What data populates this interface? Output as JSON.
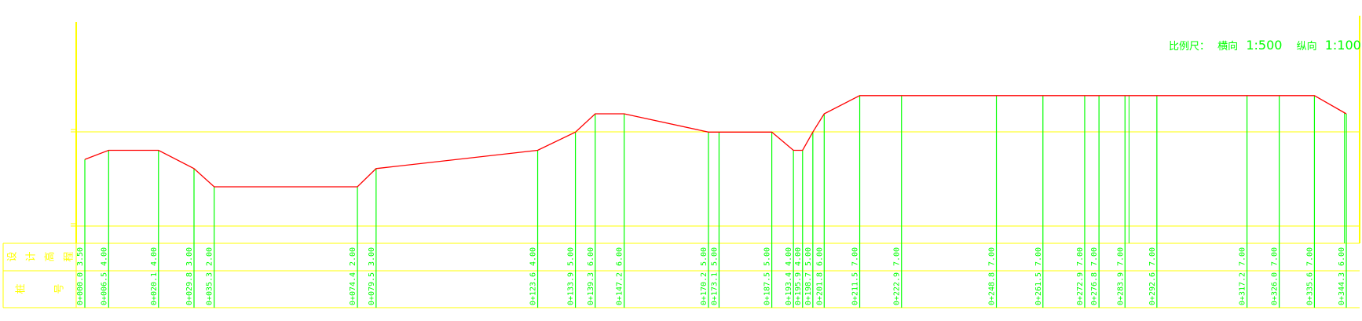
{
  "drawing": {
    "scale_label": "比例尺：",
    "horizontal_label": "横向",
    "horizontal_scale": "1:500",
    "vertical_label": "纵向",
    "vertical_scale": "1:100",
    "row_labels": {
      "elevation": [
        "设",
        "计",
        "高",
        "程"
      ],
      "station": [
        "桩",
        "号"
      ]
    },
    "colors": {
      "grid": "#ffff00",
      "profile_line": "#ff0000",
      "station_lines": "#00ff00",
      "text": "#00ff00",
      "row_labels": "#ffff00",
      "background": "#ffffff"
    }
  },
  "chart_data": {
    "type": "line",
    "title": "",
    "xlabel": "",
    "ylabel": "",
    "x_unit": "m",
    "ylim": [
      0,
      8
    ],
    "points": [
      {
        "station": "0+000.0",
        "x": 0.0,
        "elevation": "3.50",
        "y": 3.5
      },
      {
        "station": "0+006.5",
        "x": 6.5,
        "elevation": "4.00",
        "y": 4.0
      },
      {
        "station": "0+020.1",
        "x": 20.1,
        "elevation": "4.00",
        "y": 4.0
      },
      {
        "station": "0+029.8",
        "x": 29.8,
        "elevation": "3.00",
        "y": 3.0
      },
      {
        "station": "0+035.3",
        "x": 35.3,
        "elevation": "2.00",
        "y": 2.0
      },
      {
        "station": "0+074.4",
        "x": 74.4,
        "elevation": "2.00",
        "y": 2.0
      },
      {
        "station": "0+079.5",
        "x": 79.5,
        "elevation": "3.00",
        "y": 3.0
      },
      {
        "station": "0+123.6",
        "x": 123.6,
        "elevation": "4.00",
        "y": 4.0
      },
      {
        "station": "0+133.9",
        "x": 133.9,
        "elevation": "5.00",
        "y": 5.0
      },
      {
        "station": "0+139.3",
        "x": 139.3,
        "elevation": "6.00",
        "y": 6.0
      },
      {
        "station": "0+147.2",
        "x": 147.2,
        "elevation": "6.00",
        "y": 6.0
      },
      {
        "station": "0+170.2",
        "x": 170.2,
        "elevation": "5.00",
        "y": 5.0
      },
      {
        "station": "0+173.1",
        "x": 173.1,
        "elevation": "5.00",
        "y": 5.0
      },
      {
        "station": "0+187.5",
        "x": 187.5,
        "elevation": "5.00",
        "y": 5.0
      },
      {
        "station": "0+193.4",
        "x": 193.4,
        "elevation": "4.00",
        "y": 4.0
      },
      {
        "station": "0+195.9",
        "x": 195.9,
        "elevation": "4.00",
        "y": 4.0
      },
      {
        "station": "0+198.7",
        "x": 198.7,
        "elevation": "5.00",
        "y": 5.0
      },
      {
        "station": "0+201.8",
        "x": 201.8,
        "elevation": "6.00",
        "y": 6.0
      },
      {
        "station": "0+211.5",
        "x": 211.5,
        "elevation": "7.00",
        "y": 7.0
      },
      {
        "station": "0+222.9",
        "x": 222.9,
        "elevation": "7.00",
        "y": 7.0
      },
      {
        "station": "0+248.8",
        "x": 248.8,
        "elevation": "7.00",
        "y": 7.0
      },
      {
        "station": "0+261.5",
        "x": 261.5,
        "elevation": "7.00",
        "y": 7.0
      },
      {
        "station": "0+272.9",
        "x": 272.9,
        "elevation": "7.00",
        "y": 7.0
      },
      {
        "station": "0+276.8",
        "x": 276.8,
        "elevation": "7.00",
        "y": 7.0
      },
      {
        "station": "0+283.9",
        "x": 283.9,
        "elevation": "7.00",
        "y": 7.0
      },
      {
        "station": "0+292.6",
        "x": 292.6,
        "elevation": "7.00",
        "y": 7.0
      },
      {
        "station": "0+317.2",
        "x": 317.2,
        "elevation": "7.00",
        "y": 7.0
      },
      {
        "station": "0+326.0",
        "x": 326.0,
        "elevation": "7.00",
        "y": 7.0
      },
      {
        "station": "0+335.6",
        "x": 335.6,
        "elevation": "7.00",
        "y": 7.0
      },
      {
        "station": "0+344.3",
        "x": 344.3,
        "elevation": "6.00",
        "y": 6.0
      }
    ]
  }
}
